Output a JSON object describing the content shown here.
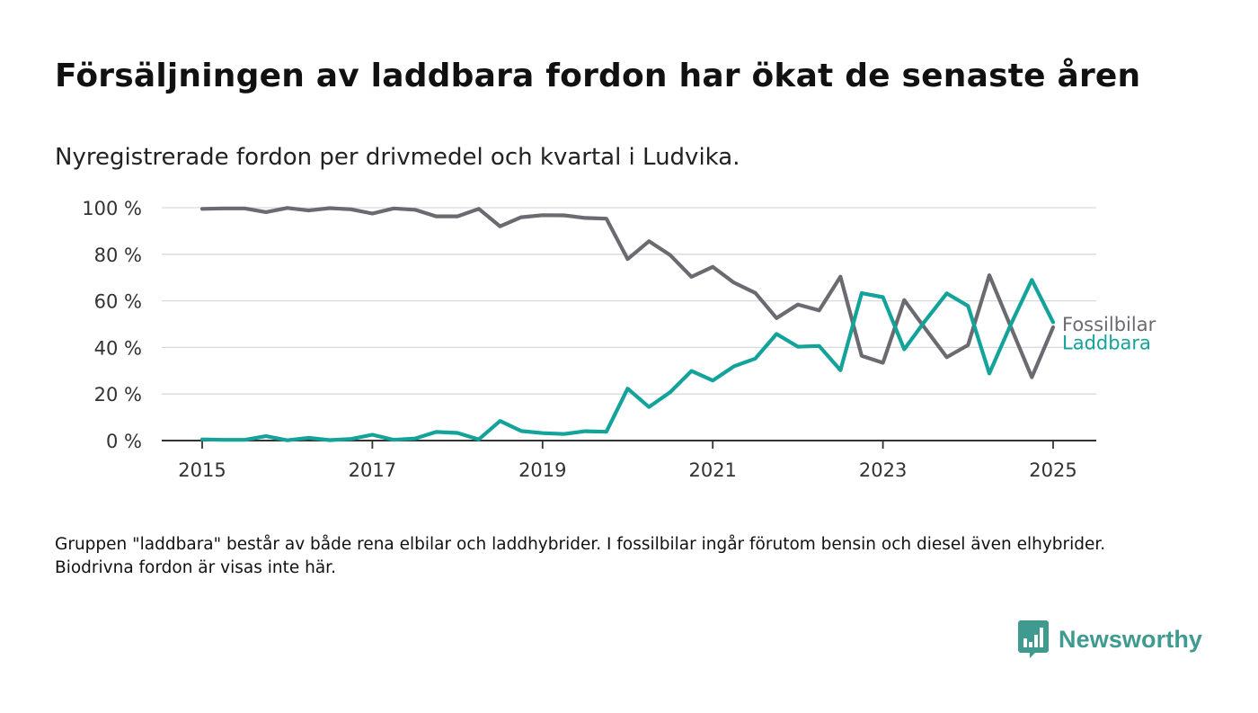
{
  "title": "Försäljningen av laddbara fordon har ökat de senaste åren",
  "subtitle": "Nyregistrerade fordon per drivmedel och kvartal i Ludvika.",
  "footnote": "Gruppen \"laddbara\" består av både rena elbilar och laddhybrider. I fossilbilar ingår förutom bensin och diesel även elhybrider. Biodrivna fordon är visas inte här.",
  "brand": {
    "name": "Newsworthy",
    "color": "#3f9a8f"
  },
  "chart_data": {
    "type": "line",
    "ylim": [
      0,
      100
    ],
    "xlim": [
      2015,
      2025.25
    ],
    "y_ticks": [
      0,
      20,
      40,
      60,
      80,
      100
    ],
    "y_tick_labels": [
      "0 %",
      "20 %",
      "40 %",
      "60 %",
      "80 %",
      "100 %"
    ],
    "x_ticks": [
      2015,
      2017,
      2019,
      2021,
      2023,
      2025
    ],
    "x_tick_labels": [
      "2015",
      "2017",
      "2019",
      "2021",
      "2023",
      "2025"
    ],
    "grid": true,
    "x": [
      2015.0,
      2015.25,
      2015.5,
      2015.75,
      2016.0,
      2016.25,
      2016.5,
      2016.75,
      2017.0,
      2017.25,
      2017.5,
      2017.75,
      2018.0,
      2018.25,
      2018.5,
      2018.75,
      2019.0,
      2019.25,
      2019.5,
      2019.75,
      2020.0,
      2020.25,
      2020.5,
      2020.75,
      2021.0,
      2021.25,
      2021.5,
      2021.75,
      2022.0,
      2022.25,
      2022.5,
      2022.75,
      2023.0,
      2023.25,
      2023.5,
      2023.75,
      2024.0,
      2024.25,
      2024.5,
      2024.75,
      2025.0
    ],
    "series": [
      {
        "name": "Fossilbilar",
        "color": "#6b6a70",
        "values": [
          99.5,
          99.7,
          99.7,
          98.1,
          99.9,
          98.8,
          99.8,
          99.3,
          97.5,
          99.7,
          99.1,
          96.3,
          96.3,
          99.5,
          92.0,
          95.9,
          96.8,
          96.7,
          95.6,
          95.3,
          77.9,
          85.6,
          79.6,
          70.3,
          74.6,
          67.8,
          63.4,
          52.6,
          58.4,
          55.9,
          70.4,
          36.4,
          33.4,
          60.3,
          48.0,
          35.8,
          41.0,
          71.0,
          49.0,
          27.2,
          48.7
        ]
      },
      {
        "name": "Laddbara",
        "color": "#13a39a",
        "values": [
          0.5,
          0.3,
          0.3,
          1.9,
          0.1,
          1.2,
          0.2,
          0.7,
          2.5,
          0.3,
          0.9,
          3.7,
          3.3,
          0.5,
          8.4,
          4.1,
          3.2,
          2.8,
          4.0,
          3.8,
          22.3,
          14.4,
          20.8,
          29.9,
          25.8,
          31.9,
          35.2,
          45.8,
          40.3,
          40.6,
          30.2,
          63.3,
          61.6,
          39.2,
          51.6,
          63.2,
          57.8,
          28.8,
          49.7,
          69.0,
          50.8
        ]
      }
    ]
  }
}
